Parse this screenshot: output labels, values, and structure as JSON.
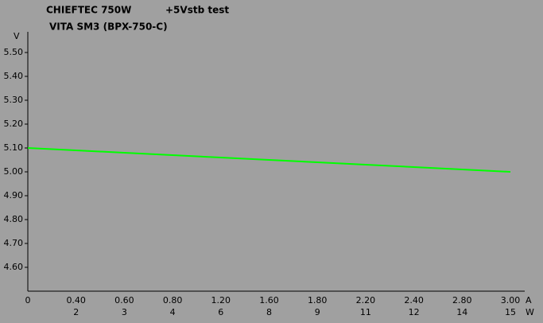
{
  "chart_data": {
    "type": "line",
    "title": "CHIEFTEC 750W",
    "subtitle": "+5Vstb test",
    "model": "VITA SM3 (BPX-750-C)",
    "y_label": "V",
    "x_label": "A",
    "x2_label": "W",
    "categories": [
      "0",
      "0.40",
      "0.60",
      "0.80",
      "1.20",
      "1.60",
      "1.80",
      "2.20",
      "2.40",
      "2.80",
      "3.00"
    ],
    "categories2": [
      null,
      "2",
      "3",
      "4",
      "6",
      "8",
      "9",
      "11",
      "12",
      "14",
      "15"
    ],
    "series": [
      {
        "name": "+5Vstb",
        "color": "#00ff00",
        "values": [
          5.1,
          5.09,
          5.08,
          5.07,
          5.06,
          5.05,
          5.04,
          5.03,
          5.02,
          5.01,
          5.0
        ]
      }
    ],
    "ylim": [
      4.5,
      5.59
    ],
    "yticks": [
      {
        "value": 4.6,
        "label": "4.60"
      },
      {
        "value": 4.7,
        "label": "4.70"
      },
      {
        "value": 4.8,
        "label": "4.80"
      },
      {
        "value": 4.9,
        "label": "4.90"
      },
      {
        "value": 5.0,
        "label": "5.00"
      },
      {
        "value": 5.1,
        "label": "5.10"
      },
      {
        "value": 5.2,
        "label": "5.20"
      },
      {
        "value": 5.3,
        "label": "5.30"
      },
      {
        "value": 5.4,
        "label": "5.40"
      },
      {
        "value": 5.5,
        "label": "5.50"
      }
    ],
    "grid": false
  }
}
